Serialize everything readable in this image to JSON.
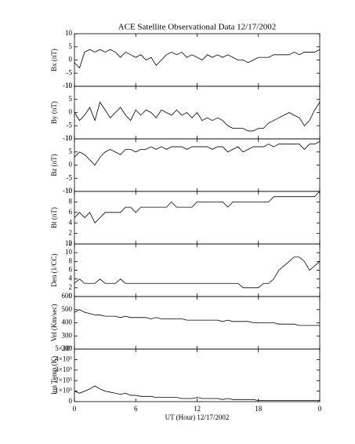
{
  "chart_data": [
    {
      "type": "line",
      "title": "ACE Satellite Observational Data   12/17/2002",
      "ylabel": "Bx (nT)",
      "color": "#000000",
      "xlim": [
        0,
        24
      ],
      "xticks": [
        0,
        6,
        12,
        18,
        {
          "value": 24,
          "label": "0"
        }
      ],
      "ylim": [
        -10,
        10
      ],
      "yticks": [
        -10,
        -5,
        0,
        5,
        10
      ],
      "x": [
        0,
        0.5,
        1,
        1.5,
        2,
        2.5,
        3,
        3.5,
        4,
        4.5,
        5,
        5.5,
        6,
        6.5,
        7,
        7.5,
        8,
        8.5,
        9,
        9.5,
        10,
        10.5,
        11,
        11.5,
        12,
        12.5,
        13,
        13.5,
        14,
        14.5,
        15,
        15.5,
        16,
        16.5,
        17,
        17.5,
        18,
        18.5,
        19,
        19.5,
        20,
        20.5,
        21,
        21.5,
        22,
        22.5,
        23,
        23.5,
        24
      ],
      "values": [
        -1,
        -3,
        3,
        4,
        3,
        4,
        3,
        4,
        3,
        1,
        3,
        2,
        1,
        2,
        0,
        1,
        -2,
        0,
        2,
        3,
        2,
        3,
        1,
        2,
        1,
        0,
        2,
        1,
        2,
        1,
        2,
        1,
        0,
        0,
        -1,
        0,
        1,
        1,
        1,
        2,
        2,
        2,
        2,
        3,
        2,
        3,
        3,
        3,
        4
      ]
    },
    {
      "type": "line",
      "ylabel": "By (nT)",
      "color": "#000000",
      "xlim": [
        0,
        24
      ],
      "xticks": [
        0,
        6,
        12,
        18,
        {
          "value": 24,
          "label": "0"
        }
      ],
      "ylim": [
        -10,
        10
      ],
      "yticks": [
        -10,
        -5,
        0,
        5,
        10
      ],
      "x": [
        0,
        0.5,
        1,
        1.5,
        2,
        2.5,
        3,
        3.5,
        4,
        4.5,
        5,
        5.5,
        6,
        6.5,
        7,
        7.5,
        8,
        8.5,
        9,
        9.5,
        10,
        10.5,
        11,
        11.5,
        12,
        12.5,
        13,
        13.5,
        14,
        14.5,
        15,
        15.5,
        16,
        16.5,
        17,
        17.5,
        18,
        18.5,
        19,
        19.5,
        20,
        20.5,
        21,
        21.5,
        22,
        22.5,
        23,
        23.5,
        24
      ],
      "values": [
        0,
        -3,
        -1,
        2,
        -3,
        4,
        1,
        -2,
        0,
        2,
        -1,
        -3,
        1,
        -1,
        1,
        0,
        -2,
        1,
        0,
        -1,
        1,
        -1,
        0,
        -2,
        0,
        -3,
        -2,
        -3,
        -2,
        -3,
        -5,
        -6,
        -6,
        -6,
        -7,
        -7,
        -6,
        -6,
        -4,
        -3,
        -2,
        -1,
        0,
        -1,
        -2,
        -5,
        -3,
        1,
        4
      ]
    },
    {
      "type": "line",
      "ylabel": "Bz (nT)",
      "color": "#000000",
      "xlim": [
        0,
        24
      ],
      "xticks": [
        0,
        6,
        12,
        18,
        {
          "value": 24,
          "label": "0"
        }
      ],
      "ylim": [
        -10,
        10
      ],
      "yticks": [
        -10,
        -5,
        0,
        5,
        10
      ],
      "x": [
        0,
        0.5,
        1,
        1.5,
        2,
        2.5,
        3,
        3.5,
        4,
        4.5,
        5,
        5.5,
        6,
        6.5,
        7,
        7.5,
        8,
        8.5,
        9,
        9.5,
        10,
        10.5,
        11,
        11.5,
        12,
        12.5,
        13,
        13.5,
        14,
        14.5,
        15,
        15.5,
        16,
        16.5,
        17,
        17.5,
        18,
        18.5,
        19,
        19.5,
        20,
        20.5,
        21,
        21.5,
        22,
        22.5,
        23,
        23.5,
        24
      ],
      "values": [
        3,
        5,
        4,
        2,
        0,
        3,
        5,
        6,
        5,
        4,
        6,
        6,
        5,
        6,
        6,
        7,
        6,
        7,
        6,
        7,
        7,
        7,
        6,
        7,
        7,
        7,
        7,
        6,
        7,
        7,
        5,
        6,
        7,
        5,
        6,
        7,
        7,
        7,
        8,
        7,
        8,
        8,
        8,
        8,
        8,
        6,
        8,
        8,
        9
      ]
    },
    {
      "type": "line",
      "ylabel": "Bt (nT)",
      "color": "#000000",
      "xlim": [
        0,
        24
      ],
      "xticks": [
        0,
        6,
        12,
        18,
        {
          "value": 24,
          "label": "0"
        }
      ],
      "ylim": [
        0,
        10
      ],
      "yticks": [
        0,
        2,
        4,
        6,
        8,
        10
      ],
      "x": [
        0,
        0.5,
        1,
        1.5,
        2,
        2.5,
        3,
        3.5,
        4,
        4.5,
        5,
        5.5,
        6,
        6.5,
        7,
        7.5,
        8,
        8.5,
        9,
        9.5,
        10,
        10.5,
        11,
        11.5,
        12,
        12.5,
        13,
        13.5,
        14,
        14.5,
        15,
        15.5,
        16,
        16.5,
        17,
        17.5,
        18,
        18.5,
        19,
        19.5,
        20,
        20.5,
        21,
        21.5,
        22,
        22.5,
        23,
        23.5,
        24
      ],
      "values": [
        5,
        6,
        5,
        6,
        4,
        5,
        6,
        6,
        6,
        6,
        7,
        7,
        6,
        7,
        7,
        7,
        7,
        7,
        7,
        8,
        7,
        7,
        7,
        7,
        8,
        8,
        8,
        8,
        8,
        8,
        7,
        8,
        8,
        8,
        8,
        8,
        8,
        8,
        8,
        9,
        9,
        9,
        9,
        9,
        9,
        9,
        9,
        9,
        10
      ]
    },
    {
      "type": "line",
      "ylabel": "Den (1/CC)",
      "color": "#000000",
      "xlim": [
        0,
        24
      ],
      "xticks": [
        0,
        6,
        12,
        18,
        {
          "value": 24,
          "label": "0"
        }
      ],
      "ylim": [
        0,
        12
      ],
      "yticks": [
        0,
        2,
        4,
        6,
        8,
        10,
        12
      ],
      "x": [
        0,
        0.5,
        1,
        1.5,
        2,
        2.5,
        3,
        3.5,
        4,
        4.5,
        5,
        5.5,
        6,
        6.5,
        7,
        7.5,
        8,
        8.5,
        9,
        9.5,
        10,
        10.5,
        11,
        11.5,
        12,
        12.5,
        13,
        13.5,
        14,
        14.5,
        15,
        15.5,
        16,
        16.5,
        17,
        17.5,
        18,
        18.5,
        19,
        19.5,
        20,
        20.5,
        21,
        21.5,
        22,
        22.5,
        23,
        23.5,
        24
      ],
      "values": [
        3,
        4,
        3,
        3,
        3,
        4,
        3,
        3,
        3,
        4,
        3,
        3,
        3,
        3,
        3,
        3,
        3,
        3,
        3,
        3,
        3,
        3,
        3,
        3,
        3,
        3,
        3,
        3,
        3,
        3,
        3,
        3,
        3,
        2,
        2,
        2,
        2,
        3,
        3,
        4,
        6,
        7,
        8,
        9,
        9,
        8,
        6,
        7,
        8
      ]
    },
    {
      "type": "line",
      "ylabel": "Vel (Km/sec)",
      "color": "#000000",
      "xlim": [
        0,
        24
      ],
      "xticks": [
        0,
        6,
        12,
        18,
        {
          "value": 24,
          "label": "0"
        }
      ],
      "ylim": [
        200,
        600
      ],
      "yticks": [
        200,
        300,
        400,
        500,
        600
      ],
      "x": [
        0,
        0.5,
        1,
        1.5,
        2,
        2.5,
        3,
        3.5,
        4,
        4.5,
        5,
        5.5,
        6,
        6.5,
        7,
        7.5,
        8,
        8.5,
        9,
        9.5,
        10,
        10.5,
        11,
        11.5,
        12,
        12.5,
        13,
        13.5,
        14,
        14.5,
        15,
        15.5,
        16,
        16.5,
        17,
        17.5,
        18,
        18.5,
        19,
        19.5,
        20,
        20.5,
        21,
        21.5,
        22,
        22.5,
        23,
        23.5,
        24
      ],
      "values": [
        480,
        500,
        480,
        470,
        460,
        460,
        450,
        450,
        450,
        440,
        450,
        440,
        440,
        440,
        440,
        430,
        440,
        430,
        430,
        430,
        430,
        430,
        420,
        420,
        420,
        420,
        420,
        420,
        420,
        410,
        420,
        410,
        410,
        410,
        410,
        400,
        400,
        400,
        400,
        400,
        390,
        390,
        390,
        390,
        380,
        380,
        380,
        380,
        380
      ]
    },
    {
      "type": "line",
      "ylabel": "Ion Temp (K)",
      "xlabel": "UT (Hour)  12/17/2002",
      "color": "#000000",
      "xlim": [
        0,
        24
      ],
      "xticks": [
        0,
        6,
        12,
        18,
        {
          "value": 24,
          "label": "0"
        }
      ],
      "ylim": [
        0,
        500000
      ],
      "yticks": [
        0,
        {
          "value": 100000,
          "label": "1×10⁵"
        },
        {
          "value": 200000,
          "label": "2×10⁵"
        },
        {
          "value": 300000,
          "label": "3×10⁵"
        },
        {
          "value": 400000,
          "label": "4×10⁵"
        },
        {
          "value": 500000,
          "label": "5×10⁵"
        }
      ],
      "x": [
        0,
        0.5,
        1,
        1.5,
        2,
        2.5,
        3,
        3.5,
        4,
        4.5,
        5,
        5.5,
        6,
        6.5,
        7,
        7.5,
        8,
        8.5,
        9,
        9.5,
        10,
        10.5,
        11,
        11.5,
        12,
        12.5,
        13,
        13.5,
        14,
        14.5,
        15,
        15.5,
        16,
        16.5,
        17,
        17.5,
        18,
        18.5,
        19,
        19.5,
        20,
        20.5,
        21,
        21.5,
        22,
        22.5,
        23,
        23.5,
        24
      ],
      "values": [
        100000,
        80000,
        100000,
        120000,
        150000,
        120000,
        100000,
        90000,
        80000,
        70000,
        80000,
        60000,
        60000,
        50000,
        50000,
        50000,
        40000,
        40000,
        40000,
        40000,
        40000,
        30000,
        30000,
        30000,
        40000,
        30000,
        30000,
        30000,
        30000,
        20000,
        30000,
        20000,
        20000,
        20000,
        20000,
        20000,
        10000,
        10000,
        10000,
        10000,
        10000,
        10000,
        10000,
        10000,
        10000,
        10000,
        10000,
        10000,
        10000
      ]
    }
  ]
}
